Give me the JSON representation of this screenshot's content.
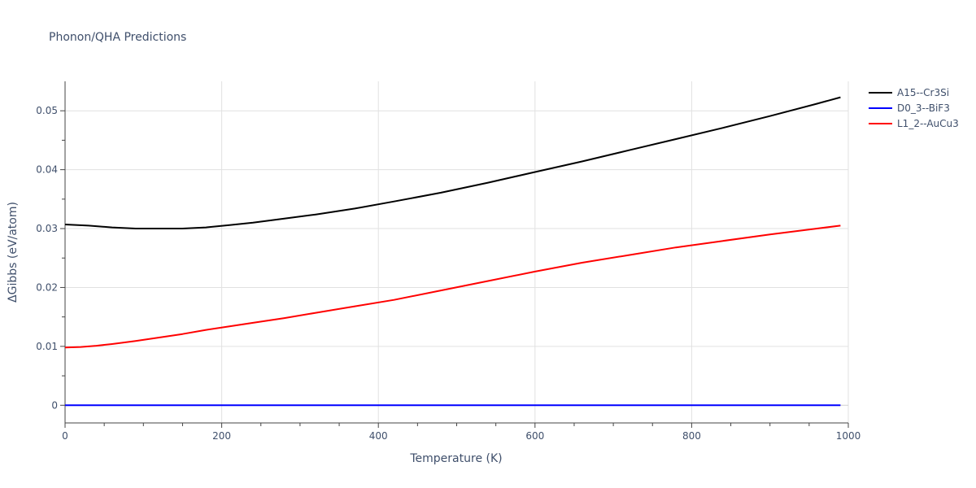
{
  "chart_data": {
    "type": "line",
    "title": "Phonon/QHA Predictions",
    "xlabel": "Temperature (K)",
    "ylabel": "ΔGibbs (eV/atom)",
    "xlim": [
      0,
      1000
    ],
    "ylim": [
      -0.003,
      0.055
    ],
    "xticks": [
      0,
      200,
      400,
      600,
      800,
      1000
    ],
    "xtick_labels": [
      "0",
      "200",
      "400",
      "600",
      "800",
      "1000"
    ],
    "yticks": [
      0,
      0.01,
      0.02,
      0.03,
      0.04,
      0.05
    ],
    "ytick_labels": [
      "0",
      "0.01",
      "0.02",
      "0.03",
      "0.04",
      "0.05"
    ],
    "grid": true,
    "legend_position": "top-right",
    "series": [
      {
        "name": "A15--Cr3Si",
        "color": "#000000",
        "x": [
          0,
          30,
          60,
          90,
          120,
          150,
          180,
          210,
          240,
          280,
          320,
          370,
          420,
          480,
          540,
          600,
          660,
          720,
          780,
          840,
          900,
          960,
          990
        ],
        "y": [
          0.0307,
          0.0305,
          0.0302,
          0.03,
          0.03,
          0.03,
          0.0302,
          0.0306,
          0.031,
          0.0317,
          0.0324,
          0.0334,
          0.0346,
          0.0361,
          0.0378,
          0.0396,
          0.0414,
          0.0433,
          0.0452,
          0.0471,
          0.0491,
          0.0512,
          0.0523
        ]
      },
      {
        "name": "D0_3--BiF3",
        "color": "#0000ff",
        "x": [
          0,
          990
        ],
        "y": [
          0,
          0
        ]
      },
      {
        "name": "L1_2--AuCu3",
        "color": "#ff0000",
        "x": [
          0,
          20,
          40,
          60,
          90,
          120,
          150,
          180,
          210,
          240,
          280,
          320,
          370,
          420,
          480,
          540,
          600,
          660,
          720,
          780,
          840,
          900,
          960,
          990
        ],
        "y": [
          0.0098,
          0.0099,
          0.0101,
          0.0104,
          0.0109,
          0.0115,
          0.0121,
          0.0128,
          0.0134,
          0.014,
          0.0148,
          0.0157,
          0.0168,
          0.0179,
          0.0195,
          0.0211,
          0.0227,
          0.0242,
          0.0255,
          0.0268,
          0.0279,
          0.029,
          0.03,
          0.0305
        ]
      }
    ]
  }
}
